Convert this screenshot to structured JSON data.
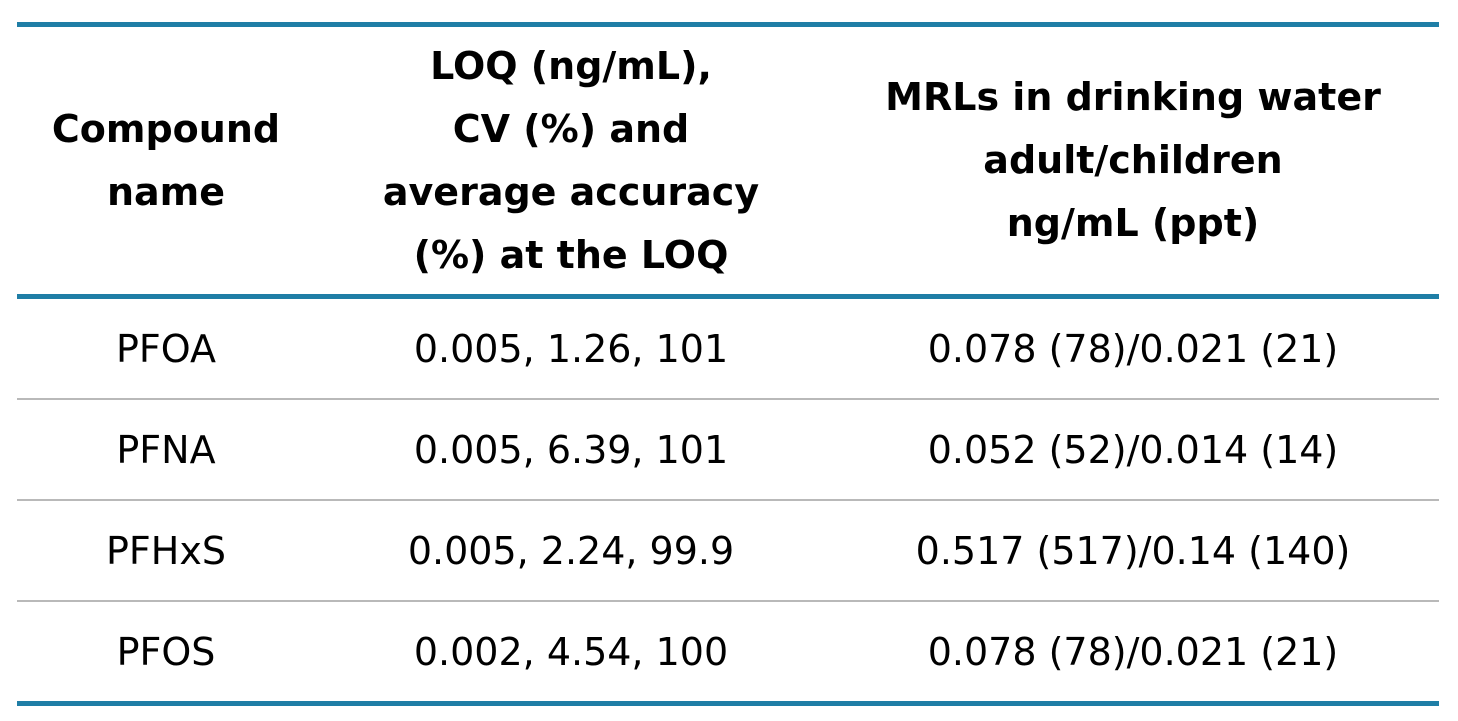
{
  "table": {
    "headers": [
      "Compound\nname",
      "LOQ (ng/mL),\nCV (%) and\naverage accuracy\n(%) at the LOQ",
      "MRLs in drinking water\nadult/children\nng/mL (ppt)"
    ],
    "rows": [
      [
        "PFOA",
        "0.005, 1.26, 101",
        "0.078 (78)/0.021 (21)"
      ],
      [
        "PFNA",
        "0.005, 6.39, 101",
        "0.052 (52)/0.014 (14)"
      ],
      [
        "PFHxS",
        "0.005, 2.24, 99.9",
        "0.517 (517)/0.14 (140)"
      ],
      [
        "PFOS",
        "0.002, 4.54, 100",
        "0.078 (78)/0.021 (21)"
      ]
    ]
  },
  "colors": {
    "accent_rule": "#1f7ea6",
    "row_divider": "#b9b9b9",
    "text": "#000000"
  }
}
